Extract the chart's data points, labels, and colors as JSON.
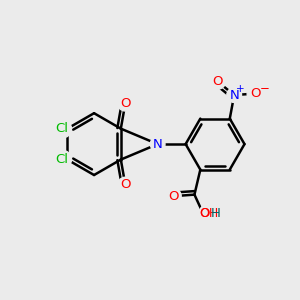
{
  "bg_color": "#ebebeb",
  "bond_color": "#000000",
  "bond_width": 1.8,
  "atom_colors": {
    "O": "#ff0000",
    "N": "#0000ff",
    "Cl": "#00bb00",
    "H": "#006666"
  },
  "font_size": 9.5,
  "fig_size": [
    3.0,
    3.0
  ],
  "dpi": 100,
  "xlim": [
    0,
    10
  ],
  "ylim": [
    0,
    10
  ]
}
